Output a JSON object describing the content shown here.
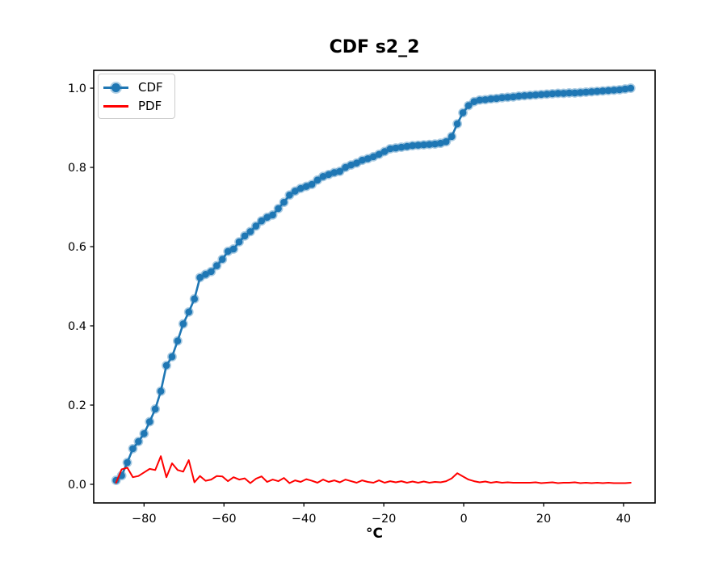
{
  "title": "CDF s2_2",
  "legend": {
    "position": "upper left",
    "items": [
      {
        "label": "CDF",
        "color": "#1f77b4",
        "marker": "line-with-circle"
      },
      {
        "label": "PDF",
        "color": "#ff0000",
        "marker": "line"
      }
    ]
  },
  "chart_data": {
    "type": "line",
    "title": "CDF s2_2",
    "xlabel": "°C",
    "ylabel": "",
    "grid": false,
    "legend_position": "upper left",
    "xlim": [
      -92.6,
      47.9
    ],
    "ylim": [
      -0.047,
      1.045
    ],
    "xticks": [
      {
        "value": -80,
        "label": "−80"
      },
      {
        "value": -60,
        "label": "−60"
      },
      {
        "value": -40,
        "label": "−40"
      },
      {
        "value": -20,
        "label": "−20"
      },
      {
        "value": 0,
        "label": "0"
      },
      {
        "value": 20,
        "label": "20"
      },
      {
        "value": 40,
        "label": "40"
      }
    ],
    "yticks": [
      {
        "value": 0.0,
        "label": "0.0"
      },
      {
        "value": 0.2,
        "label": "0.2"
      },
      {
        "value": 0.4,
        "label": "0.4"
      },
      {
        "value": 0.6,
        "label": "0.6"
      },
      {
        "value": 0.8,
        "label": "0.8"
      },
      {
        "value": 1.0,
        "label": "1.0"
      }
    ],
    "x": [
      -87.0,
      -85.6,
      -84.2,
      -82.8,
      -81.4,
      -80.0,
      -78.6,
      -77.2,
      -75.8,
      -74.4,
      -73.0,
      -71.6,
      -70.2,
      -68.8,
      -67.4,
      -66.0,
      -64.6,
      -63.2,
      -61.8,
      -60.4,
      -59.0,
      -57.6,
      -56.2,
      -54.8,
      -53.4,
      -52.0,
      -50.6,
      -49.2,
      -47.8,
      -46.4,
      -45.0,
      -43.6,
      -42.2,
      -40.8,
      -39.4,
      -38.0,
      -36.6,
      -35.2,
      -33.8,
      -32.4,
      -31.0,
      -29.6,
      -28.2,
      -26.8,
      -25.4,
      -24.0,
      -22.6,
      -21.2,
      -19.8,
      -18.4,
      -17.0,
      -15.6,
      -14.2,
      -12.8,
      -11.4,
      -10.0,
      -8.6,
      -7.2,
      -5.8,
      -4.4,
      -3.0,
      -1.6,
      -0.2,
      1.2,
      2.6,
      4.0,
      5.4,
      6.8,
      8.2,
      9.6,
      11.0,
      12.4,
      13.8,
      15.2,
      16.6,
      18.0,
      19.4,
      20.8,
      22.2,
      23.6,
      25.0,
      26.4,
      27.8,
      29.2,
      30.6,
      32.0,
      33.4,
      34.8,
      36.2,
      37.6,
      39.0,
      40.4,
      41.8
    ],
    "series": [
      {
        "name": "CDF",
        "color": "#1f77b4",
        "marker": "circle",
        "values": [
          0.01,
          0.022,
          0.055,
          0.09,
          0.108,
          0.128,
          0.158,
          0.19,
          0.235,
          0.3,
          0.322,
          0.362,
          0.405,
          0.435,
          0.468,
          0.522,
          0.53,
          0.537,
          0.552,
          0.568,
          0.588,
          0.594,
          0.612,
          0.627,
          0.638,
          0.652,
          0.665,
          0.674,
          0.68,
          0.696,
          0.712,
          0.73,
          0.74,
          0.747,
          0.752,
          0.757,
          0.768,
          0.777,
          0.782,
          0.787,
          0.79,
          0.8,
          0.806,
          0.811,
          0.818,
          0.822,
          0.827,
          0.833,
          0.84,
          0.847,
          0.849,
          0.851,
          0.853,
          0.855,
          0.856,
          0.857,
          0.858,
          0.859,
          0.861,
          0.865,
          0.878,
          0.91,
          0.938,
          0.956,
          0.966,
          0.97,
          0.971,
          0.973,
          0.974,
          0.976,
          0.977,
          0.978,
          0.98,
          0.981,
          0.982,
          0.983,
          0.984,
          0.985,
          0.986,
          0.987,
          0.987,
          0.988,
          0.988,
          0.989,
          0.99,
          0.991,
          0.992,
          0.993,
          0.994,
          0.995,
          0.996,
          0.998,
          1.0
        ]
      },
      {
        "name": "PDF",
        "color": "#ff0000",
        "marker": "none",
        "values": [
          0.004,
          0.038,
          0.042,
          0.018,
          0.021,
          0.03,
          0.039,
          0.036,
          0.071,
          0.018,
          0.053,
          0.036,
          0.032,
          0.061,
          0.005,
          0.021,
          0.009,
          0.012,
          0.021,
          0.02,
          0.008,
          0.018,
          0.012,
          0.015,
          0.003,
          0.014,
          0.02,
          0.006,
          0.012,
          0.008,
          0.016,
          0.003,
          0.01,
          0.006,
          0.013,
          0.009,
          0.004,
          0.012,
          0.006,
          0.01,
          0.005,
          0.012,
          0.008,
          0.004,
          0.01,
          0.006,
          0.004,
          0.01,
          0.004,
          0.008,
          0.005,
          0.008,
          0.004,
          0.007,
          0.004,
          0.007,
          0.004,
          0.006,
          0.005,
          0.008,
          0.015,
          0.028,
          0.02,
          0.012,
          0.008,
          0.005,
          0.007,
          0.004,
          0.006,
          0.004,
          0.005,
          0.004,
          0.004,
          0.004,
          0.004,
          0.005,
          0.003,
          0.004,
          0.005,
          0.003,
          0.004,
          0.004,
          0.005,
          0.003,
          0.004,
          0.003,
          0.004,
          0.003,
          0.004,
          0.003,
          0.003,
          0.003,
          0.004
        ]
      }
    ]
  }
}
